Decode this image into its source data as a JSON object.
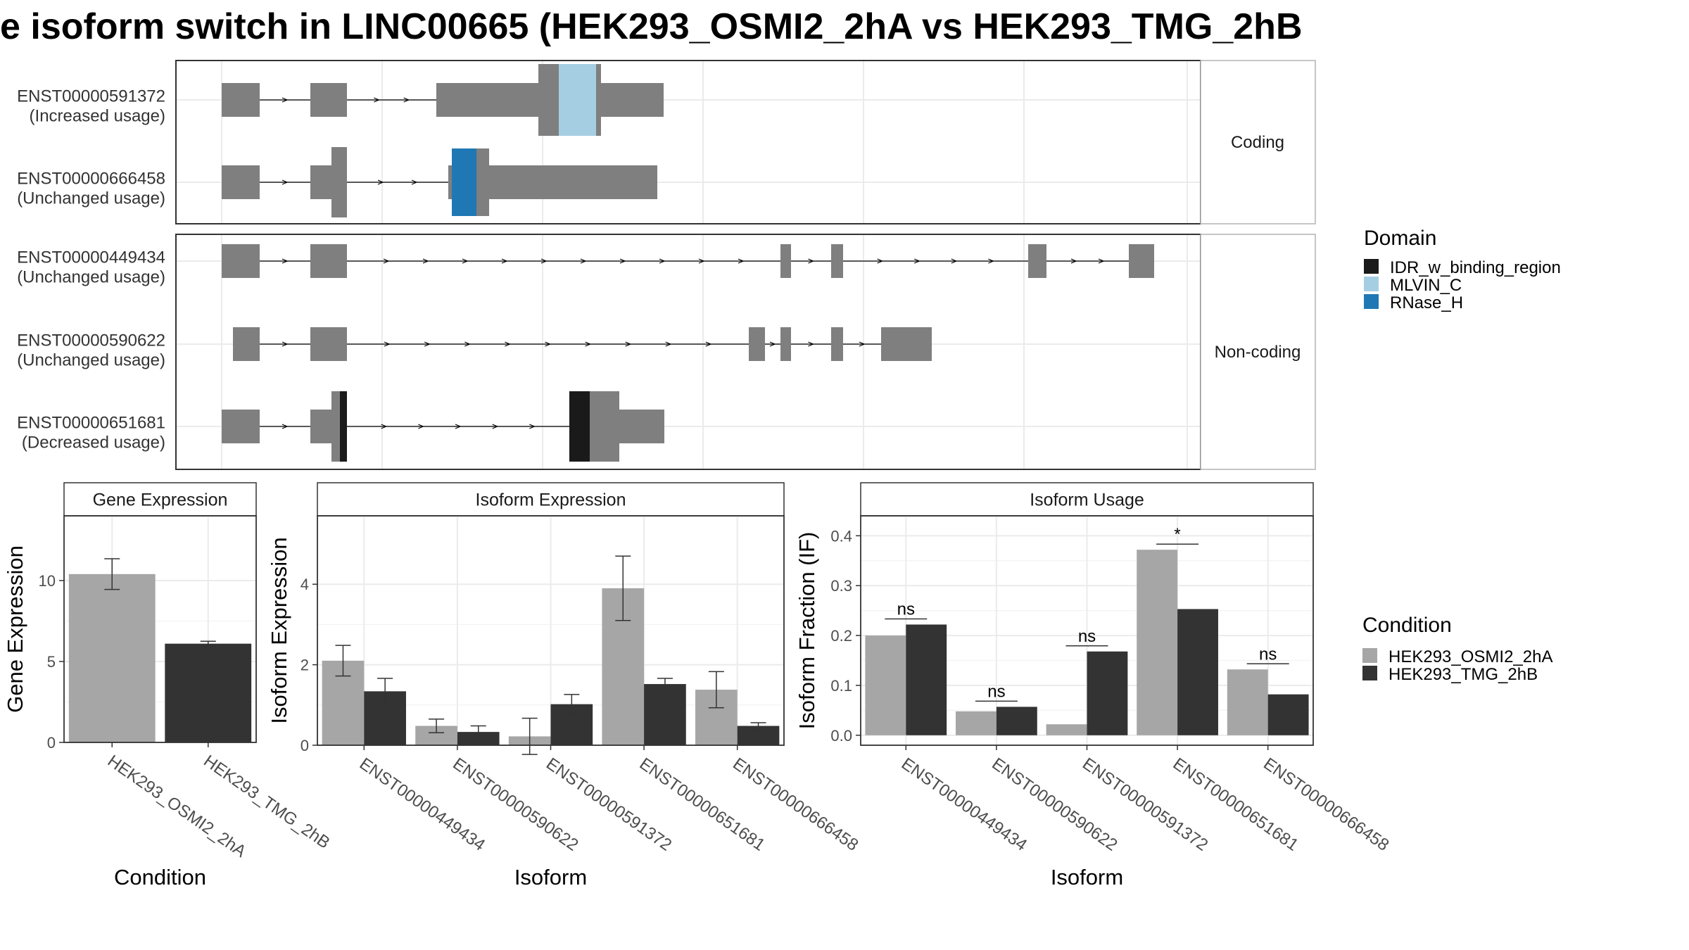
{
  "title": "e isoform switch in LINC00665 (HEK293_OSMI2_2hA vs HEK293_TMG_2hB",
  "colors": {
    "exon": "#7f7f7f",
    "cond1": "#a6a6a6",
    "cond2": "#333333",
    "IDR_w_binding_region": "#1a1a1a",
    "MLVIN_C": "#a6cee3",
    "RNase_H": "#1f78b4",
    "grid": "#ebebeb"
  },
  "structure": {
    "facets": [
      {
        "label": "Coding",
        "isoforms": [
          {
            "id": "ENST00000591372",
            "usage": "(Increased usage)"
          },
          {
            "id": "ENST00000666458",
            "usage": "(Unchanged usage)"
          }
        ]
      },
      {
        "label": "Non-coding",
        "isoforms": [
          {
            "id": "ENST00000449434",
            "usage": "(Unchanged usage)"
          },
          {
            "id": "ENST00000590622",
            "usage": "(Unchanged usage)"
          },
          {
            "id": "ENST00000651681",
            "usage": "(Decreased usage)"
          }
        ]
      }
    ]
  },
  "legends": {
    "domain": {
      "title": "Domain",
      "items": [
        "IDR_w_binding_region",
        "MLVIN_C",
        "RNase_H"
      ]
    },
    "condition": {
      "title": "Condition",
      "items": [
        "HEK293_OSMI2_2hA",
        "HEK293_TMG_2hB"
      ]
    }
  },
  "chart_data": [
    {
      "type": "bar",
      "title": "Gene Expression",
      "xlabel": "Condition",
      "ylabel": "Gene Expression",
      "ylim": [
        0,
        14
      ],
      "yticks": [
        0,
        5,
        10
      ],
      "categories": [
        "HEK293_OSMI2_2hA",
        "HEK293_TMG_2hB"
      ],
      "series": [
        {
          "name": "Gene Expression",
          "values": [
            10.4,
            6.1
          ],
          "errors": [
            0.95,
            0.15
          ]
        }
      ]
    },
    {
      "type": "bar",
      "title": "Isoform Expression",
      "xlabel": "Isoform",
      "ylabel": "Isoform Expression",
      "ylim": [
        0,
        5.7
      ],
      "yticks": [
        0,
        2,
        4
      ],
      "categories": [
        "ENST00000449434",
        "ENST00000590622",
        "ENST00000591372",
        "ENST00000651681",
        "ENST00000666458"
      ],
      "series": [
        {
          "name": "HEK293_OSMI2_2hA",
          "values": [
            2.1,
            0.48,
            0.22,
            3.9,
            1.38
          ],
          "errors": [
            0.38,
            0.17,
            0.45,
            0.8,
            0.45
          ]
        },
        {
          "name": "HEK293_TMG_2hB",
          "values": [
            1.34,
            0.33,
            1.02,
            1.52,
            0.48
          ],
          "errors": [
            0.32,
            0.15,
            0.24,
            0.14,
            0.08
          ]
        }
      ]
    },
    {
      "type": "bar",
      "title": "Isoform Usage",
      "xlabel": "Isoform",
      "ylabel": "Isoform Fraction (IF)",
      "ylim": [
        -0.02,
        0.44
      ],
      "yticks": [
        0.0,
        0.1,
        0.2,
        0.3,
        0.4
      ],
      "yticklabels": [
        "0.0",
        "0.1",
        "0.2",
        "0.3",
        "0.4"
      ],
      "categories": [
        "ENST00000449434",
        "ENST00000590622",
        "ENST00000591372",
        "ENST00000651681",
        "ENST00000666458"
      ],
      "series": [
        {
          "name": "HEK293_OSMI2_2hA",
          "values": [
            0.2,
            0.048,
            0.022,
            0.372,
            0.132
          ]
        },
        {
          "name": "HEK293_TMG_2hB",
          "values": [
            0.222,
            0.057,
            0.168,
            0.253,
            0.082
          ]
        }
      ],
      "significance": [
        "ns",
        "ns",
        "ns",
        "*",
        "ns"
      ]
    }
  ]
}
